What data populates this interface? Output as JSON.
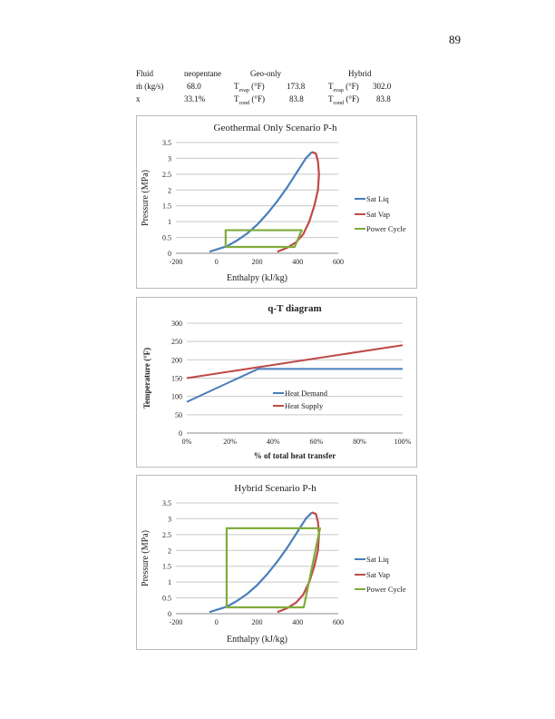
{
  "page_number": "89",
  "summary_table": {
    "fluid_label": "Fluid",
    "fluid_value": "neopentane",
    "geo_header": "Geo-only",
    "hybrid_header": "Hybrid",
    "mdot_label": "ṁ (kg/s)",
    "mdot_value": "68.0",
    "x_label": "x",
    "x_value": "33.1%",
    "tevap_label": "T",
    "tevap_sub": "evap",
    "tevap_unit": " (°F)",
    "tcond_label": "T",
    "tcond_sub": "cond",
    "tcond_unit": " (°F)",
    "geo_tevap": "173.8",
    "geo_tcond": "83.8",
    "hybrid_tevap": "302.0",
    "hybrid_tcond": "83.8"
  },
  "chart_data": [
    {
      "type": "line",
      "title": "Geothermal Only Scenario P-h",
      "xlabel": "Enthalpy (kJ/kg)",
      "ylabel": "Pressure (MPa)",
      "xlim": [
        -200,
        600
      ],
      "ylim": [
        0,
        3.5
      ],
      "xticks": [
        "-200",
        "0",
        "200",
        "400",
        "600"
      ],
      "yticks": [
        "0",
        "0.5",
        "1",
        "1.5",
        "2",
        "2.5",
        "3",
        "3.5"
      ],
      "grid": "horizontal",
      "legend": "right",
      "series": [
        {
          "name": "Sat Liq",
          "color": "#4a7ebb",
          "points": [
            [
              -35,
              0.05
            ],
            [
              0,
              0.12
            ],
            [
              50,
              0.22
            ],
            [
              100,
              0.4
            ],
            [
              150,
              0.62
            ],
            [
              200,
              0.9
            ],
            [
              250,
              1.25
            ],
            [
              300,
              1.65
            ],
            [
              350,
              2.1
            ],
            [
              400,
              2.6
            ],
            [
              440,
              3.0
            ],
            [
              470,
              3.2
            ]
          ]
        },
        {
          "name": "Sat Vap",
          "color": "#be4b48",
          "points": [
            [
              470,
              3.2
            ],
            [
              490,
              3.15
            ],
            [
              500,
              2.9
            ],
            [
              505,
              2.5
            ],
            [
              500,
              2.0
            ],
            [
              482,
              1.5
            ],
            [
              457,
              1.0
            ],
            [
              427,
              0.6
            ],
            [
              392,
              0.35
            ],
            [
              350,
              0.18
            ],
            [
              300,
              0.05
            ]
          ]
        },
        {
          "name": "Power Cycle",
          "color": "#7eac3c",
          "points": [
            [
              45,
              0.2
            ],
            [
              45,
              0.73
            ],
            [
              420,
              0.73
            ],
            [
              385,
              0.2
            ],
            [
              45,
              0.2
            ]
          ]
        }
      ]
    },
    {
      "type": "line",
      "title": "q-T diagram",
      "xlabel": "% of total heat transfer",
      "ylabel": "Temperature (°F)",
      "xlim": [
        0,
        100
      ],
      "ylim": [
        0,
        300
      ],
      "xticks": [
        "0%",
        "20%",
        "40%",
        "60%",
        "80%",
        "100%"
      ],
      "yticks": [
        "0",
        "50",
        "100",
        "150",
        "200",
        "250",
        "300"
      ],
      "grid": "horizontal",
      "legend": "inside-right",
      "series": [
        {
          "name": "Heat Demand",
          "color": "#4a7ebb",
          "points": [
            [
              0,
              85
            ],
            [
              33,
              175
            ],
            [
              100,
              175
            ]
          ]
        },
        {
          "name": "Heat Supply",
          "color": "#be4b48",
          "points": [
            [
              0,
              150
            ],
            [
              100,
              240
            ]
          ]
        }
      ]
    },
    {
      "type": "line",
      "title": "Hybrid Scenario P-h",
      "xlabel": "Enthalpy (kJ/kg)",
      "ylabel": "Pressure (MPa)",
      "xlim": [
        -200,
        600
      ],
      "ylim": [
        0,
        3.5
      ],
      "xticks": [
        "-200",
        "0",
        "200",
        "400",
        "600"
      ],
      "yticks": [
        "0",
        "0.5",
        "1",
        "1.5",
        "2",
        "2.5",
        "3",
        "3.5"
      ],
      "grid": "horizontal",
      "legend": "right",
      "series": [
        {
          "name": "Sat Liq",
          "color": "#4a7ebb",
          "points": [
            [
              -35,
              0.05
            ],
            [
              0,
              0.12
            ],
            [
              50,
              0.22
            ],
            [
              100,
              0.4
            ],
            [
              150,
              0.62
            ],
            [
              200,
              0.9
            ],
            [
              250,
              1.25
            ],
            [
              300,
              1.65
            ],
            [
              350,
              2.1
            ],
            [
              400,
              2.6
            ],
            [
              440,
              3.0
            ],
            [
              470,
              3.2
            ]
          ]
        },
        {
          "name": "Sat Vap",
          "color": "#be4b48",
          "points": [
            [
              470,
              3.2
            ],
            [
              490,
              3.15
            ],
            [
              500,
              2.9
            ],
            [
              505,
              2.5
            ],
            [
              500,
              2.0
            ],
            [
              482,
              1.5
            ],
            [
              457,
              1.0
            ],
            [
              427,
              0.6
            ],
            [
              392,
              0.35
            ],
            [
              350,
              0.18
            ],
            [
              300,
              0.05
            ]
          ]
        },
        {
          "name": "Power Cycle",
          "color": "#7eac3c",
          "points": [
            [
              50,
              0.2
            ],
            [
              50,
              2.7
            ],
            [
              510,
              2.7
            ],
            [
              430,
              0.2
            ],
            [
              50,
              0.2
            ]
          ]
        }
      ]
    }
  ]
}
